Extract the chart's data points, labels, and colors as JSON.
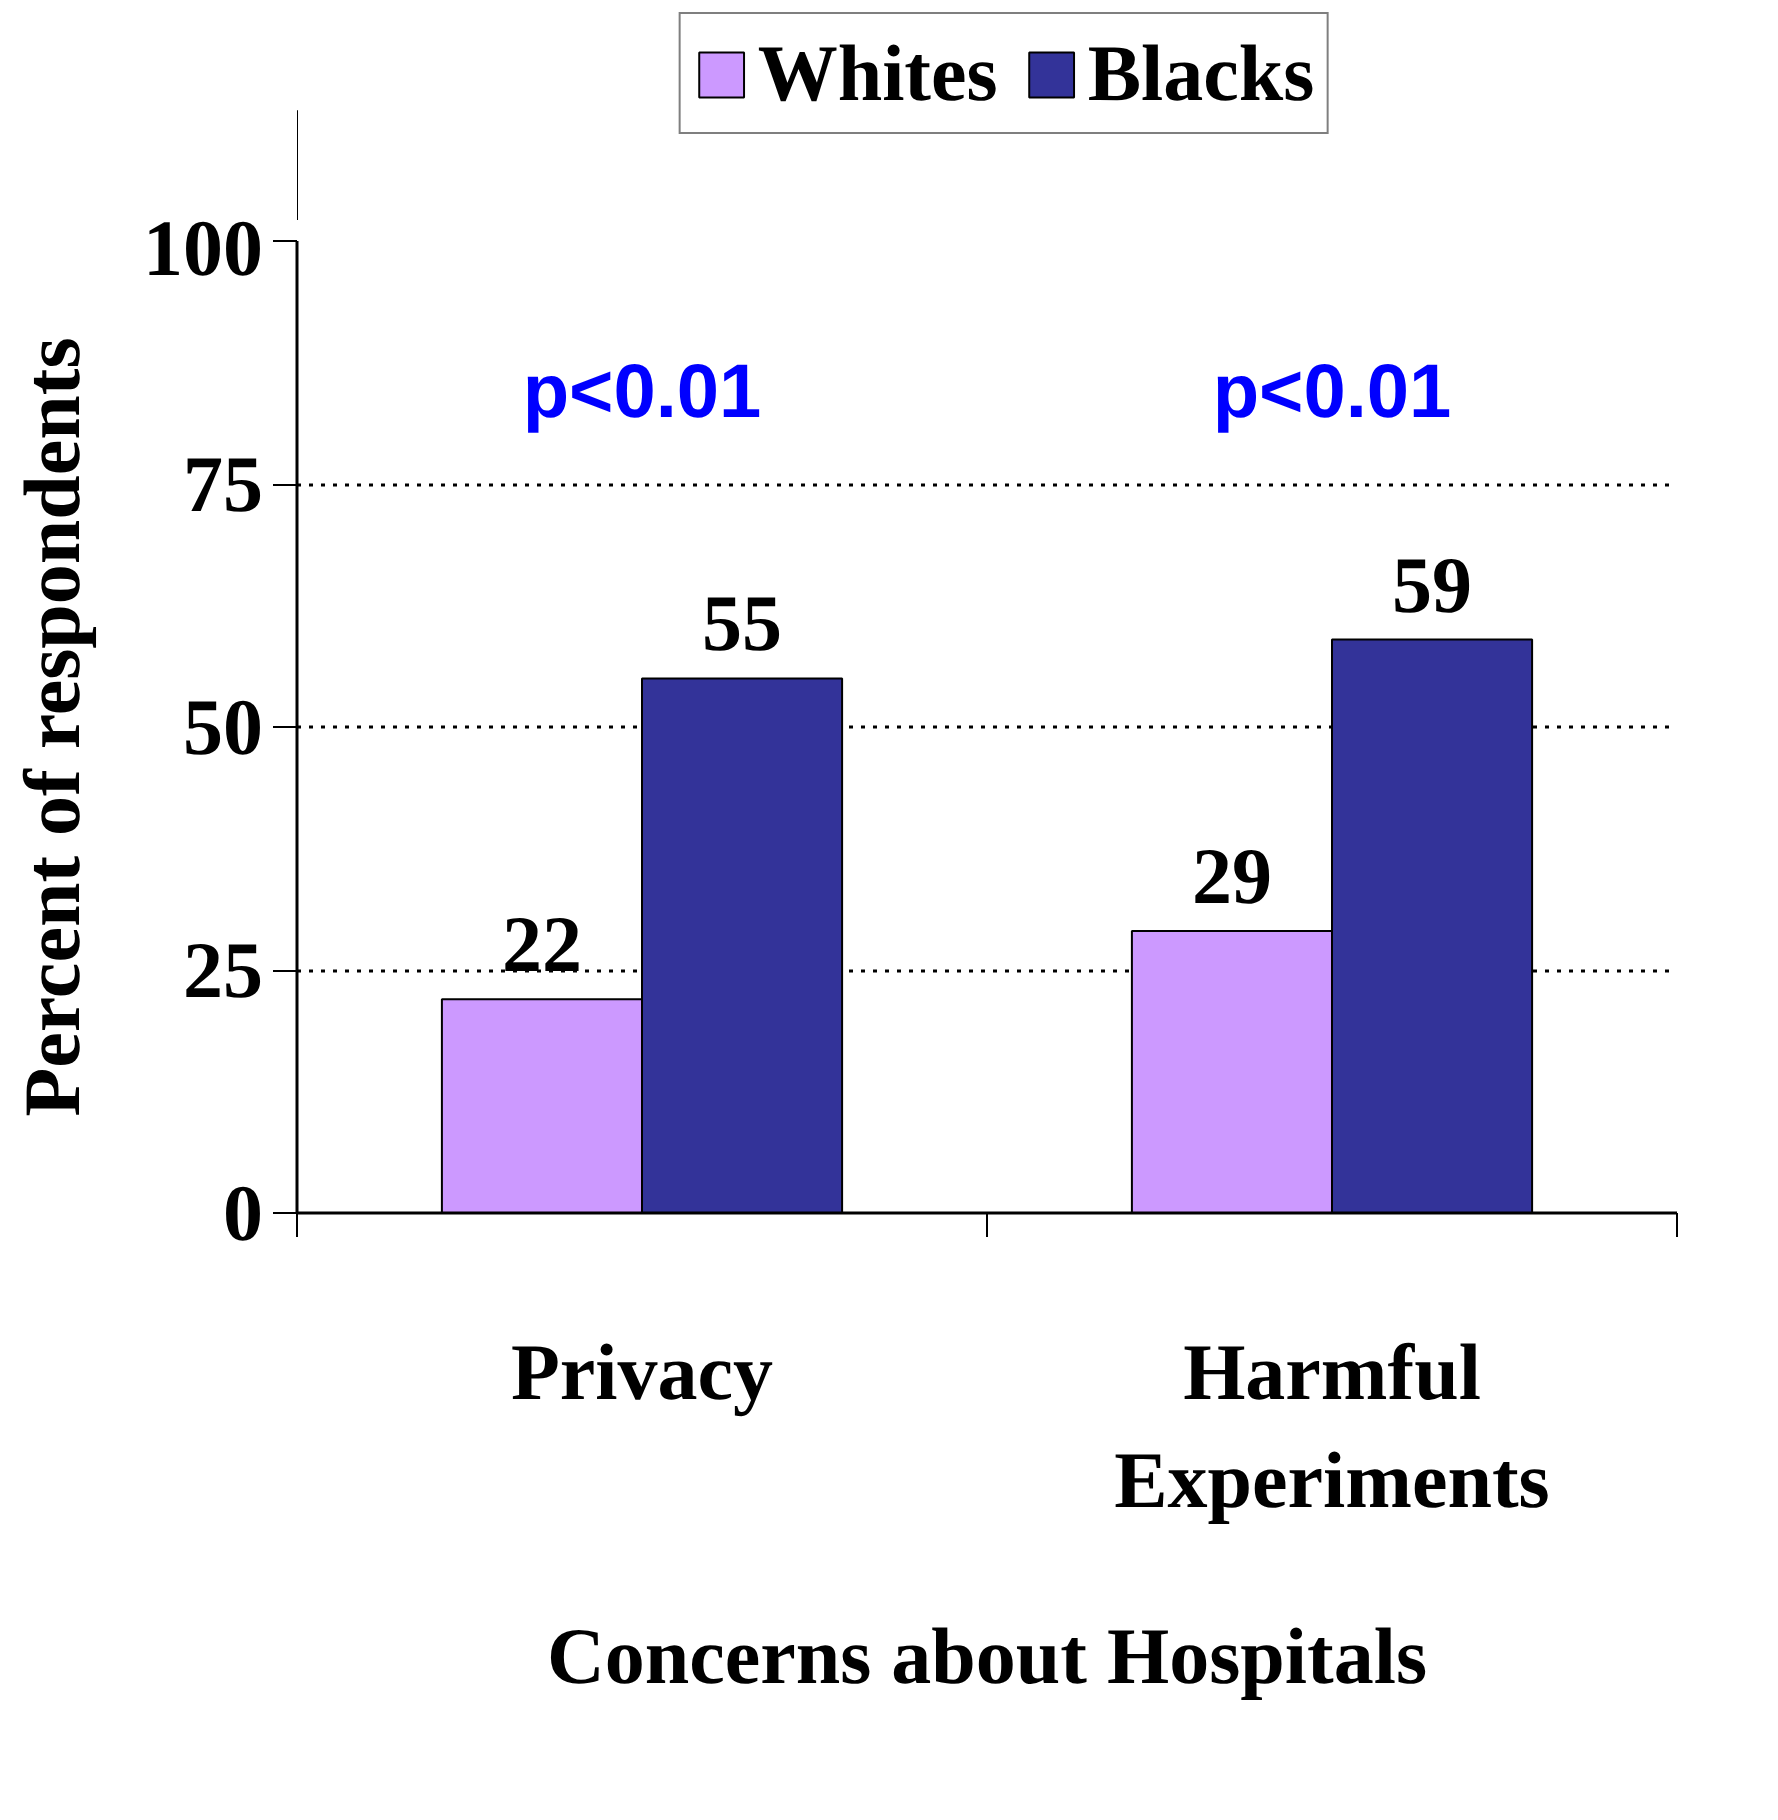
{
  "chart_data": {
    "type": "bar",
    "xlabel": "Concerns about Hospitals",
    "ylabel": "Percent of respondents",
    "categories": [
      "Privacy",
      "Harmful Experiments"
    ],
    "series": [
      {
        "name": "Whites",
        "color": "#cc99ff",
        "values": [
          22,
          29
        ]
      },
      {
        "name": "Blacks",
        "color": "#333399",
        "values": [
          55,
          59
        ]
      }
    ],
    "ylim": [
      0,
      100
    ],
    "yticks": [
      0,
      25,
      50,
      75,
      100
    ],
    "grid": "y",
    "legend": "top",
    "data_labels": true,
    "annotations": [
      "p<0.01",
      "p<0.01"
    ]
  }
}
